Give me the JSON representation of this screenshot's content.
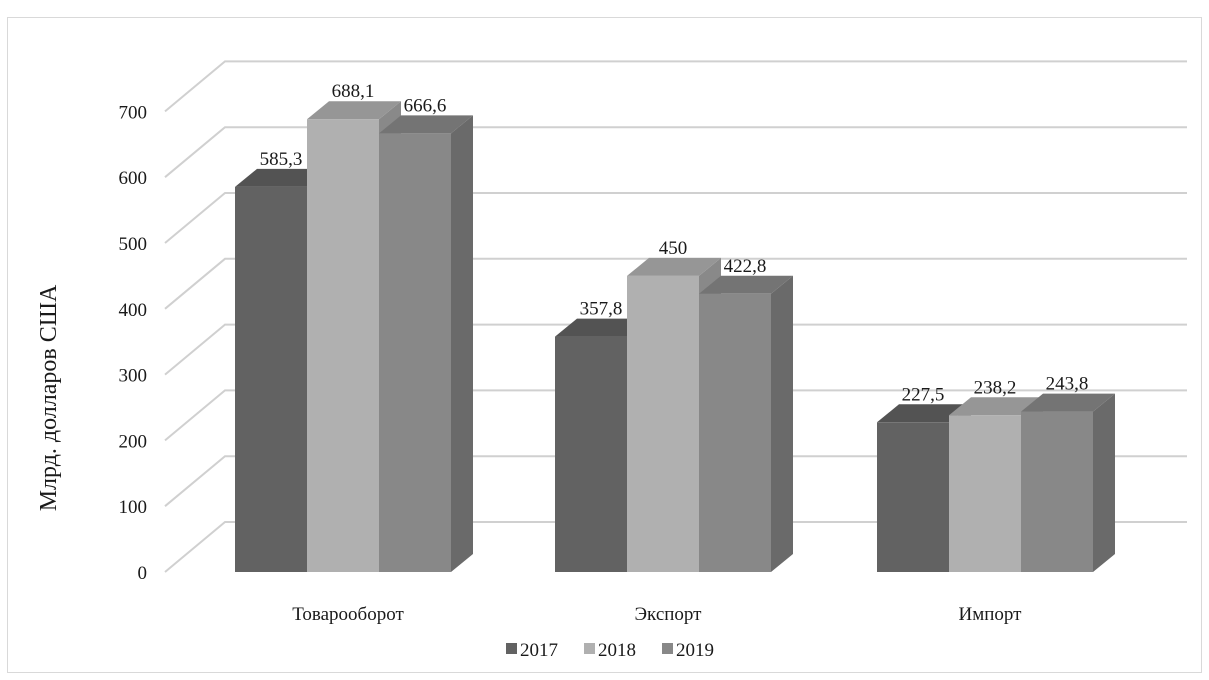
{
  "chart_data": {
    "type": "bar",
    "variant": "3d-clustered-column",
    "categories": [
      "Товарооборот",
      "Экспорт",
      "Импорт"
    ],
    "series": [
      {
        "name": "2017",
        "values": [
          585.3,
          357.8,
          227.5
        ],
        "labels": [
          "585,3",
          "357,8",
          "227,5"
        ],
        "color": "#626262"
      },
      {
        "name": "2018",
        "values": [
          688.1,
          450,
          238.2
        ],
        "labels": [
          "688,1",
          "450",
          "238,2"
        ],
        "color": "#b0b0b0"
      },
      {
        "name": "2019",
        "values": [
          666.6,
          422.8,
          243.8
        ],
        "labels": [
          "666,6",
          "422,8",
          "243,8"
        ],
        "color": "#888888"
      }
    ],
    "ylabel": "Млрд. долларов США",
    "xlabel": "",
    "title": "",
    "ylim": [
      0,
      700
    ],
    "yticks": [
      0,
      100,
      200,
      300,
      400,
      500,
      600,
      700
    ],
    "grid": true,
    "legend_position": "bottom"
  }
}
